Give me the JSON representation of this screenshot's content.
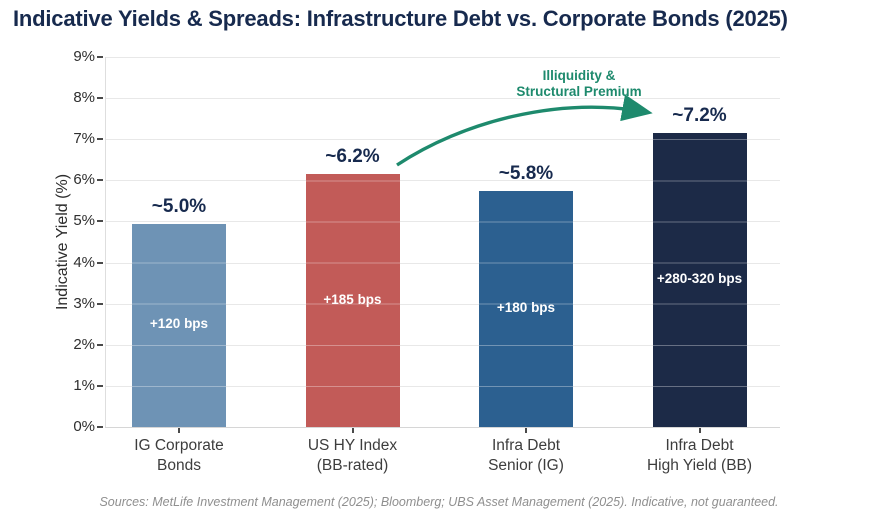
{
  "title": "Indicative Yields & Spreads: Infrastructure Debt vs. Corporate Bonds (2025)",
  "footer": "Sources: MetLife Investment Management (2025); Bloomberg; UBS Asset Management (2025). Indicative, not guaranteed.",
  "chart_data": {
    "type": "bar",
    "title": "Indicative Yields & Spreads: Infrastructure Debt vs. Corporate Bonds (2025)",
    "xlabel": "",
    "ylabel": "Indicative Yield (%)",
    "ylim": [
      0,
      9
    ],
    "ytick_labels": [
      "0%",
      "1%",
      "2%",
      "3%",
      "4%",
      "5%",
      "6%",
      "7%",
      "8%",
      "9%"
    ],
    "grid": true,
    "legend_position": "none",
    "categories": [
      [
        "IG Corporate",
        "Bonds"
      ],
      [
        "US HY Index",
        "(BB-rated)"
      ],
      [
        "Infra Debt",
        "Senior (IG)"
      ],
      [
        "Infra Debt",
        "High Yield (BB)"
      ]
    ],
    "values": [
      4.95,
      6.15,
      5.75,
      7.15
    ],
    "value_labels": [
      "~5.0%",
      "~6.2%",
      "~5.8%",
      "~7.2%"
    ],
    "spread_labels": [
      "+120 bps",
      "+185 bps",
      "+180 bps",
      "+280-320 bps"
    ],
    "bar_colors": [
      "#6e93b5",
      "#c25b58",
      "#2c6090",
      "#1c2a47"
    ],
    "annotation": {
      "line1": "Illiquidity &",
      "line2": "Structural Premium",
      "color": "#1e8a6d"
    },
    "title_color": "#172a4e",
    "label_color": "#172a4e"
  }
}
